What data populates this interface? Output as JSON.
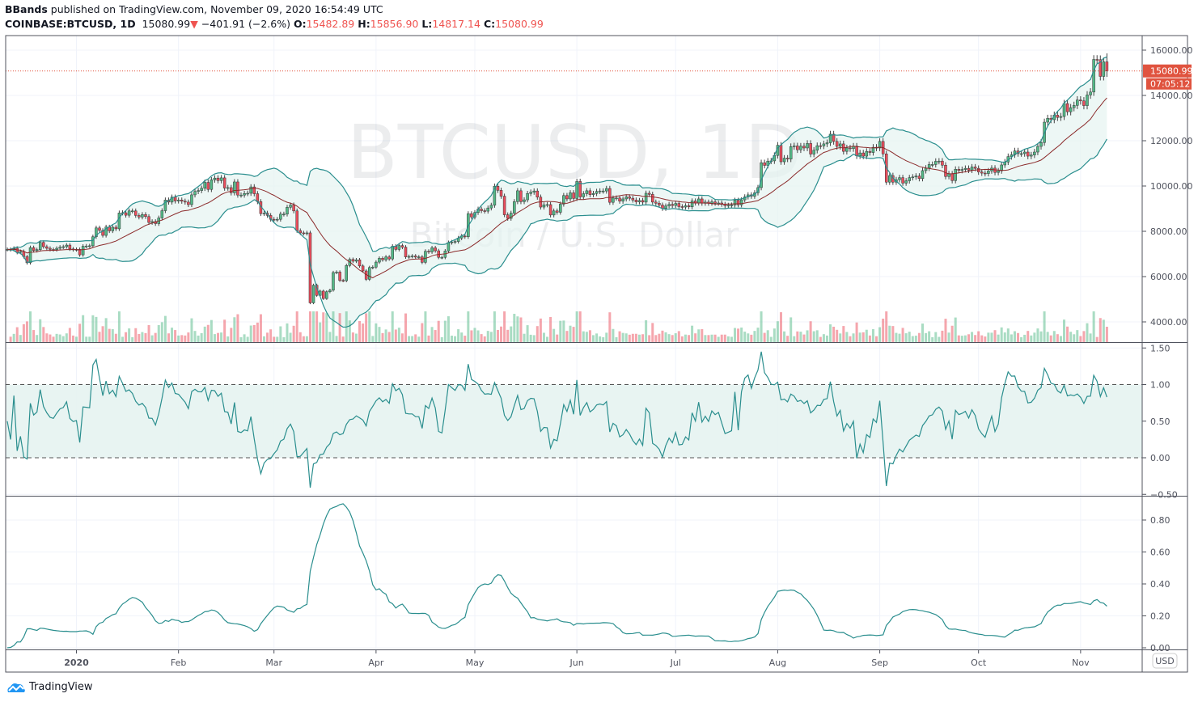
{
  "header": {
    "author": "BBands",
    "published": "published on TradingView.com, November 09, 2020 16:54:49 UTC",
    "symbol": "COINBASE:BTCUSD, 1D",
    "last": "15080.99",
    "change": "−401.91 (−2.6%)",
    "o_label": "O:",
    "o": "15482.89",
    "h_label": "H:",
    "h": "15856.90",
    "l_label": "L:",
    "l": "14817.14",
    "c_label": "C:",
    "c": "15080.99"
  },
  "watermark": {
    "title": "BTCUSD, 1D",
    "subtitle": "Bitcoin / U.S. Dollar"
  },
  "price_scale": {
    "currency": "USD",
    "last_price_label": "15080.99",
    "countdown": "07:05:12",
    "ticks": [
      "16000.00",
      "14000.00",
      "12000.00",
      "10000.00",
      "8000.00",
      "6000.00",
      "4000.00"
    ]
  },
  "colors": {
    "up": "#53b987",
    "down": "#eb4d5c",
    "band": "#2a8e8e",
    "basis": "#8b2a2a",
    "fill": "#e6f3f1",
    "last": "#e0533f"
  },
  "chart_data": [
    {
      "type": "candlestick",
      "indicator": "Bollinger Bands (20, 2)",
      "first_date": "2019-12-11",
      "ylim": [
        3500,
        16500
      ],
      "closes": [
        7200,
        7190,
        7250,
        7070,
        7110,
        6880,
        6610,
        7280,
        7150,
        7190,
        7510,
        7320,
        7250,
        7200,
        7190,
        7250,
        7300,
        7320,
        7390,
        7220,
        7190,
        7200,
        6960,
        7340,
        7350,
        7360,
        7760,
        8150,
        8040,
        7820,
        8190,
        8020,
        8180,
        8110,
        8810,
        8820,
        8710,
        8900,
        8900,
        8700,
        8630,
        8740,
        8650,
        8390,
        8430,
        8340,
        8590,
        8910,
        9380,
        9290,
        9510,
        9340,
        9380,
        9330,
        9290,
        9180,
        9610,
        9760,
        9800,
        9900,
        10160,
        9850,
        10270,
        10350,
        10240,
        10360,
        9910,
        9930,
        9700,
        10180,
        9600,
        9600,
        9670,
        9680,
        9960,
        9660,
        9310,
        8780,
        8800,
        8700,
        8530,
        8520,
        8530,
        8760,
        8760,
        9060,
        9160,
        8900,
        8030,
        7930,
        7910,
        7930,
        4840,
        5620,
        5170,
        5360,
        5030,
        5330,
        5400,
        6180,
        6200,
        5830,
        5820,
        6490,
        6760,
        6680,
        6740,
        6470,
        6250,
        5880,
        6400,
        6420,
        6640,
        6810,
        6740,
        6870,
        6780,
        7340,
        7200,
        7370,
        7300,
        6870,
        6890,
        6910,
        6860,
        6870,
        6630,
        7120,
        7090,
        7270,
        7140,
        6850,
        6850,
        7130,
        7500,
        7530,
        7550,
        7700,
        7790,
        7760,
        8780,
        8630,
        8830,
        8980,
        8910,
        8890,
        9030,
        9150,
        9990,
        9810,
        9550,
        8730,
        8570,
        8800,
        9310,
        9790,
        9310,
        9390,
        9670,
        9730,
        9780,
        9510,
        9070,
        9170,
        9180,
        8720,
        8900,
        8840,
        9200,
        9580,
        9430,
        9700,
        9450,
        10200,
        9520,
        9660,
        9790,
        9620,
        9670,
        9760,
        9780,
        9780,
        9890,
        9280,
        9470,
        9470,
        9330,
        9430,
        9520,
        9460,
        9380,
        9300,
        9360,
        9290,
        9680,
        9630,
        9290,
        9240,
        9160,
        9010,
        9120,
        9190,
        9140,
        9230,
        9090,
        9070,
        9130,
        9080,
        9340,
        9250,
        9430,
        9240,
        9290,
        9240,
        9300,
        9240,
        9250,
        9190,
        9130,
        9150,
        9160,
        9370,
        9170,
        9390,
        9520,
        9610,
        9550,
        9700,
        9930,
        11030,
        10910,
        11100,
        11110,
        11350,
        11800,
        11070,
        11230,
        11190,
        11740,
        11770,
        11600,
        11760,
        11680,
        11880,
        11410,
        11580,
        11780,
        11770,
        11860,
        11910,
        12290,
        11970,
        11750,
        11860,
        11530,
        11680,
        11650,
        11760,
        11330,
        11460,
        11320,
        11530,
        11480,
        11710,
        11680,
        11970,
        11420,
        10170,
        10460,
        10170,
        10280,
        10370,
        10130,
        10230,
        10370,
        10400,
        10440,
        10330,
        10680,
        10790,
        10950,
        10950,
        11090,
        11100,
        10920,
        10420,
        10540,
        10240,
        10740,
        10690,
        10730,
        10780,
        10700,
        10840,
        10780,
        10620,
        10570,
        10550,
        10670,
        10790,
        10600,
        10670,
        10930,
        11060,
        11300,
        11380,
        11550,
        11430,
        11430,
        11500,
        11320,
        11370,
        11500,
        11750,
        11920,
        12820,
        12990,
        12930,
        13130,
        13030,
        13070,
        13640,
        13280,
        13460,
        13560,
        13800,
        13760,
        13550,
        14020,
        14150,
        15590,
        15580,
        14840,
        15482.89,
        15080.99
      ],
      "last_bar": {
        "open": 15482.89,
        "high": 15856.9,
        "low": 14817.14,
        "close": 15080.99
      }
    },
    {
      "type": "line",
      "name": "",
      "ylim": [
        -0.5,
        1.5
      ],
      "ticks": [
        "1.50",
        "1.00",
        "0.50",
        "0.00",
        "−0.50"
      ],
      "band": [
        0,
        1
      ]
    },
    {
      "type": "line",
      "name": "",
      "ylim": [
        0,
        0.9
      ],
      "ticks": [
        "0.80",
        "0.60",
        "0.40",
        "0.20",
        "0.00"
      ]
    }
  ],
  "time_axis": [
    {
      "label": "2020",
      "date": "2020-01-01",
      "bold": true
    },
    {
      "label": "Feb",
      "date": "2020-02-01"
    },
    {
      "label": "Mar",
      "date": "2020-03-01"
    },
    {
      "label": "Apr",
      "date": "2020-04-01"
    },
    {
      "label": "May",
      "date": "2020-05-01"
    },
    {
      "label": "Jun",
      "date": "2020-06-01"
    },
    {
      "label": "Jul",
      "date": "2020-07-01"
    },
    {
      "label": "Aug",
      "date": "2020-08-01"
    },
    {
      "label": "Sep",
      "date": "2020-09-01"
    },
    {
      "label": "Oct",
      "date": "2020-10-01"
    },
    {
      "label": "Nov",
      "date": "2020-11-01"
    }
  ],
  "footer": {
    "brand": "TradingView"
  }
}
